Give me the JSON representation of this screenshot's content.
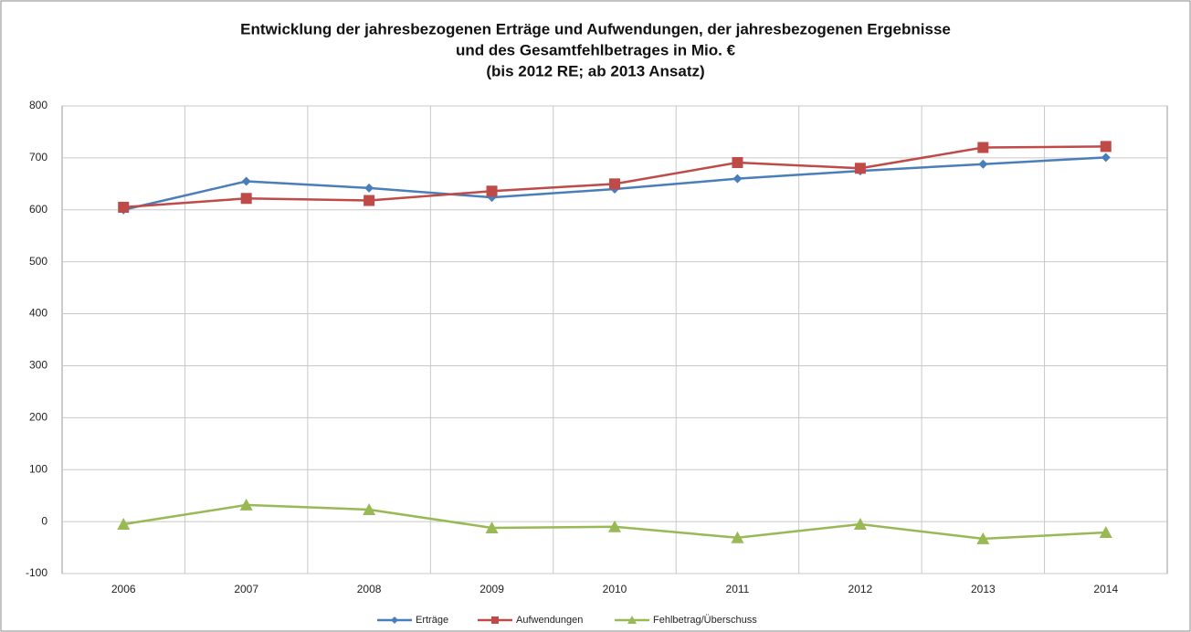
{
  "chart_data": {
    "type": "line",
    "title": [
      "Entwicklung der jahresbezogenen Erträge und  Aufwendungen, der jahresbezogenen Ergebnisse",
      "und des Gesamtfehlbetrages in Mio.  €",
      "(bis 2012 RE; ab 2013 Ansatz)"
    ],
    "categories": [
      "2006",
      "2007",
      "2008",
      "2009",
      "2010",
      "2011",
      "2012",
      "2013",
      "2014"
    ],
    "series": [
      {
        "name": "Erträge",
        "color": "#4a7ebb",
        "marker": "diamond",
        "values": [
          600,
          655,
          642,
          624,
          640,
          660,
          675,
          688,
          701
        ]
      },
      {
        "name": "Aufwendungen",
        "color": "#be4b48",
        "marker": "square",
        "values": [
          605,
          622,
          618,
          636,
          650,
          691,
          680,
          720,
          722
        ]
      },
      {
        "name": "Fehlbetrag/Überschuss",
        "color": "#98b954",
        "marker": "triangle",
        "values": [
          -5,
          32,
          23,
          -12,
          -10,
          -31,
          -5,
          -33,
          -21
        ]
      }
    ],
    "ylim": [
      -100,
      800
    ],
    "yticks": [
      -100,
      0,
      100,
      200,
      300,
      400,
      500,
      600,
      700,
      800
    ],
    "grid": true,
    "legend": "bottom"
  }
}
